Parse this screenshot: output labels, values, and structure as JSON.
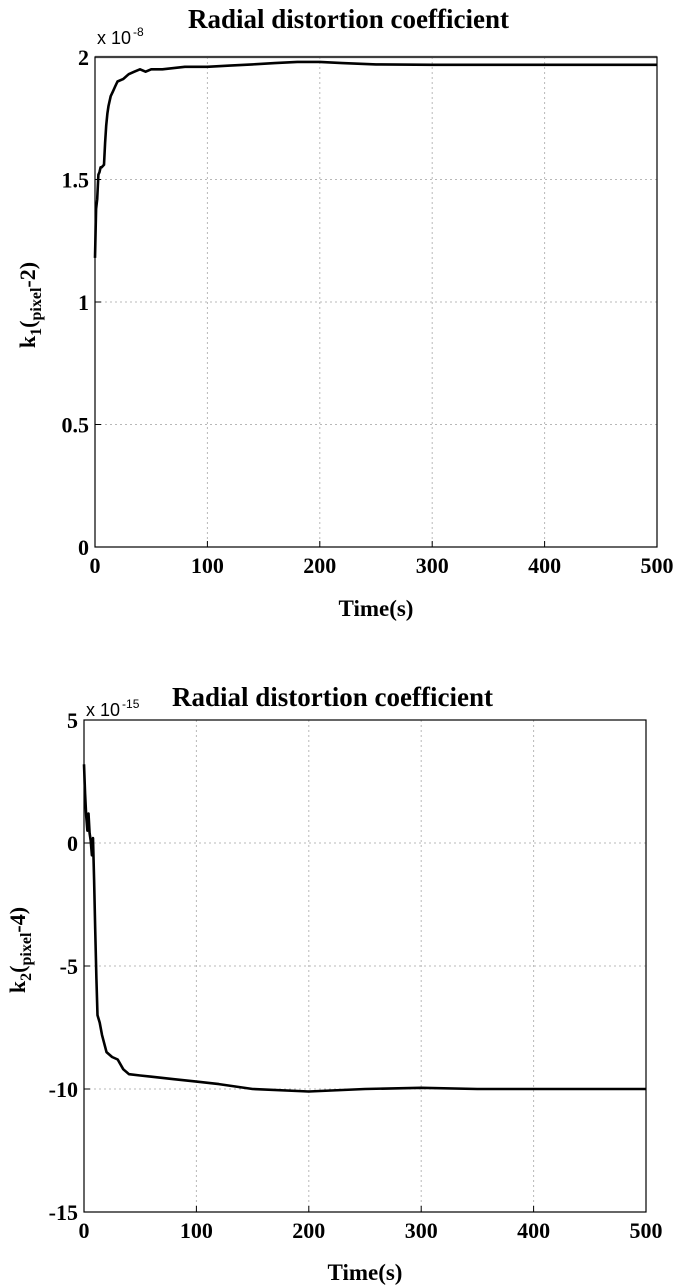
{
  "chart_data": [
    {
      "type": "line",
      "title": "Radial distortion coefficient",
      "multiplier": "x 10",
      "multiplier_exp": "-8",
      "xlabel": "Time(s)",
      "ylabel_main": "k",
      "ylabel_sub1": "1",
      "ylabel_open": "(",
      "ylabel_sub2": "pixel",
      "ylabel_tail": "-2)",
      "xlim": [
        0,
        500
      ],
      "ylim": [
        0,
        2
      ],
      "xticks": [
        0,
        100,
        200,
        300,
        400,
        500
      ],
      "yticks": [
        0,
        0.5,
        1,
        1.5,
        2
      ],
      "xtick_labels": [
        "0",
        "100",
        "200",
        "300",
        "400",
        "500"
      ],
      "ytick_labels": [
        "0",
        "0.5",
        "1",
        "1.5",
        "2"
      ],
      "grid": true,
      "series": [
        {
          "x": [
            0,
            1,
            2,
            3,
            4,
            5,
            6,
            8,
            9,
            10,
            11,
            12,
            14,
            16,
            18,
            20,
            25,
            30,
            35,
            40,
            45,
            50,
            60,
            80,
            100,
            120,
            140,
            160,
            180,
            200,
            220,
            250,
            300,
            350,
            400,
            450,
            500
          ],
          "y": [
            1.18,
            1.38,
            1.42,
            1.52,
            1.53,
            1.55,
            1.55,
            1.56,
            1.65,
            1.72,
            1.77,
            1.8,
            1.84,
            1.86,
            1.88,
            1.9,
            1.91,
            1.93,
            1.94,
            1.95,
            1.94,
            1.95,
            1.95,
            1.96,
            1.96,
            1.965,
            1.97,
            1.975,
            1.98,
            1.98,
            1.975,
            1.97,
            1.968,
            1.968,
            1.968,
            1.968,
            1.968
          ]
        }
      ]
    },
    {
      "type": "line",
      "title": "Radial distortion coefficient",
      "multiplier": "x 10",
      "multiplier_exp": "-15",
      "xlabel": "Time(s)",
      "ylabel_main": "k",
      "ylabel_sub1": "2",
      "ylabel_open": "(",
      "ylabel_sub2": "pixel",
      "ylabel_tail": "-4)",
      "xlim": [
        0,
        500
      ],
      "ylim": [
        -15,
        5
      ],
      "xticks": [
        0,
        100,
        200,
        300,
        400,
        500
      ],
      "yticks": [
        -15,
        -10,
        -5,
        0,
        5
      ],
      "xtick_labels": [
        "0",
        "100",
        "200",
        "300",
        "400",
        "500"
      ],
      "ytick_labels": [
        "-15",
        "-10",
        "-5",
        "0",
        "5"
      ],
      "grid": true,
      "series": [
        {
          "x": [
            0,
            1,
            2,
            3,
            4,
            5,
            6,
            7,
            8,
            9,
            10,
            11,
            12,
            14,
            16,
            20,
            25,
            30,
            35,
            40,
            50,
            60,
            80,
            100,
            120,
            150,
            200,
            250,
            300,
            350,
            400,
            450,
            500
          ],
          "y": [
            3.2,
            2.0,
            1.1,
            0.5,
            1.2,
            0.4,
            0.1,
            -0.5,
            0.2,
            -1.5,
            -3.5,
            -5.5,
            -7.0,
            -7.3,
            -7.8,
            -8.5,
            -8.7,
            -8.8,
            -9.2,
            -9.4,
            -9.45,
            -9.5,
            -9.6,
            -9.7,
            -9.8,
            -10.0,
            -10.1,
            -10.0,
            -9.95,
            -10.0,
            -10.0,
            -10.0,
            -10.0
          ]
        }
      ]
    }
  ]
}
